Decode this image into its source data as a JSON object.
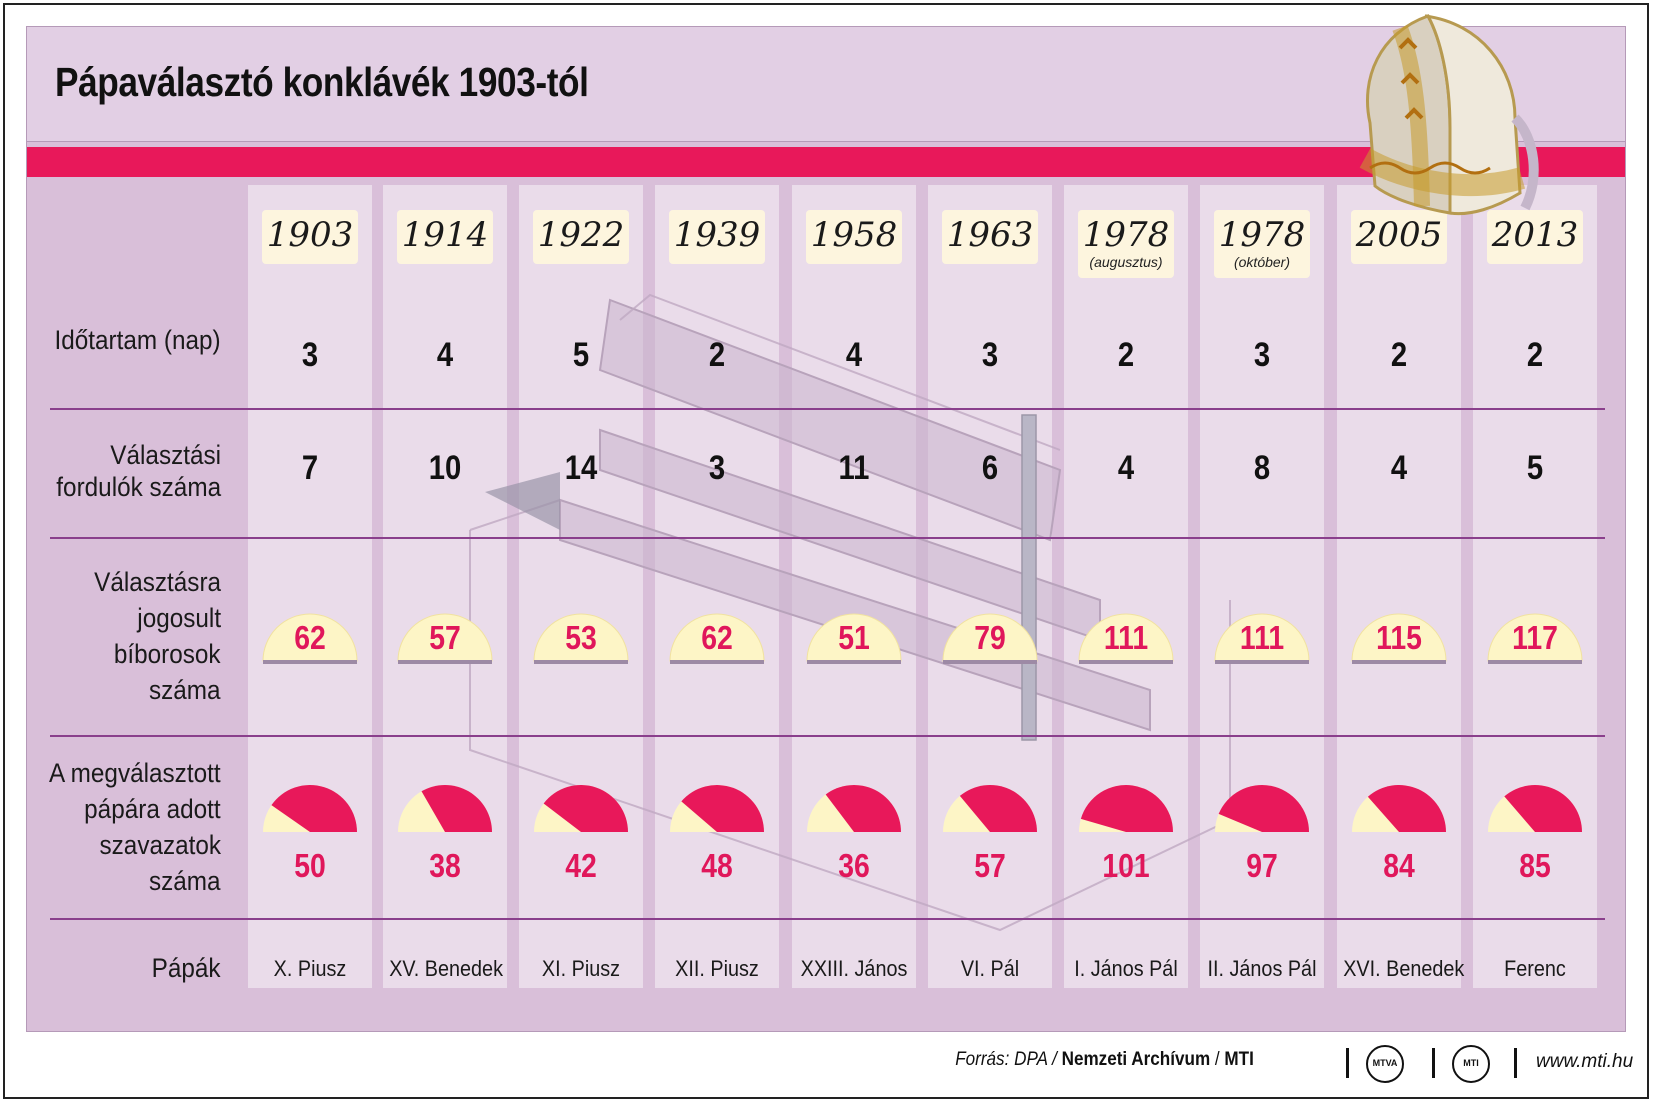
{
  "title": "Pápaválasztó konklávék 1903-tól",
  "row_labels": {
    "duration": [
      "Időtartam (nap)"
    ],
    "rounds": [
      "Választási",
      "fordulók száma"
    ],
    "electors": [
      "Választásra",
      "jogosult",
      "bíborosok",
      "száma"
    ],
    "votes": [
      "A megválasztott",
      "pápára adott",
      "szavazatok",
      "száma"
    ],
    "popes": [
      "Pápák"
    ]
  },
  "colors": {
    "accent": "#e8185a",
    "panel": "#d9bfd9",
    "column": "#eadcea",
    "cream": "#fdf5de",
    "number_pink": "#e0175b",
    "divider": "#8a3f8c"
  },
  "icons": [
    "mitre-icon",
    "chapel-illustration",
    "mtva-logo-icon",
    "mti-logo-icon"
  ],
  "chart_data": {
    "type": "table",
    "title": "Pápaválasztó konklávék 1903-tól",
    "columns": [
      {
        "year": "1903",
        "note": "",
        "duration": "3",
        "rounds": "7",
        "electors": 62,
        "votes": 50,
        "pope": "X. Piusz"
      },
      {
        "year": "1914",
        "note": "",
        "duration": "4",
        "rounds": "10",
        "electors": 57,
        "votes": 38,
        "pope": "XV. Benedek"
      },
      {
        "year": "1922",
        "note": "",
        "duration": "5",
        "rounds": "14",
        "electors": 53,
        "votes": 42,
        "pope": "XI. Piusz"
      },
      {
        "year": "1939",
        "note": "",
        "duration": "2",
        "rounds": "3",
        "electors": 62,
        "votes": 48,
        "pope": "XII. Piusz"
      },
      {
        "year": "1958",
        "note": "",
        "duration": "4",
        "rounds": "11",
        "electors": 51,
        "votes": 36,
        "pope": "XXIII. János"
      },
      {
        "year": "1963",
        "note": "",
        "duration": "3",
        "rounds": "6",
        "electors": 79,
        "votes": 57,
        "pope": "VI. Pál"
      },
      {
        "year": "1978",
        "note": "(augusztus)",
        "duration": "2",
        "rounds": "4",
        "electors": 111,
        "votes": 101,
        "pope": "I. János Pál"
      },
      {
        "year": "1978",
        "note": "(október)",
        "duration": "3",
        "rounds": "8",
        "electors": 111,
        "votes": 97,
        "pope": "II. János Pál"
      },
      {
        "year": "2005",
        "note": "",
        "duration": "2",
        "rounds": "4",
        "electors": 115,
        "votes": 84,
        "pope": "XVI. Benedek"
      },
      {
        "year": "2013",
        "note": "",
        "duration": "2",
        "rounds": "5",
        "electors": 117,
        "votes": 85,
        "pope": "Ferenc"
      }
    ]
  },
  "footer": {
    "source_label": "Forrás: DPA /",
    "source_bold": "Nemzeti Archívum",
    "source_sep": "/",
    "source_mti": "MTI",
    "logo1": "MTVA",
    "logo2": "MTI",
    "url": "www.mti.hu"
  }
}
